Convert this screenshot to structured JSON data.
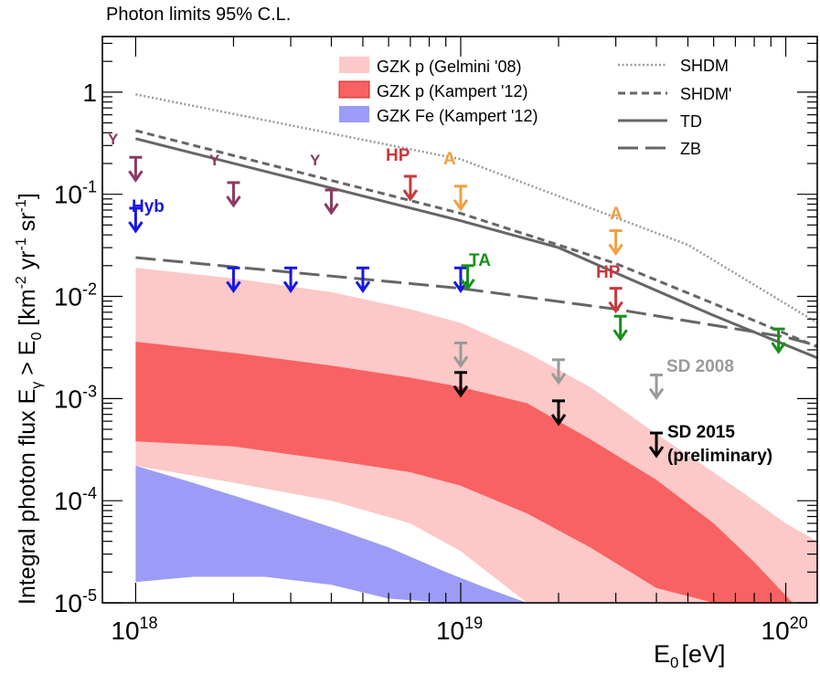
{
  "chart_data": {
    "type": "line",
    "title": "Photon limits 95% C.L.",
    "xlabel": "E",
    "xlabel_sub": "0",
    "xlabel_unit": "[eV]",
    "ylabel": {
      "main": "Integral photon flux E",
      "sub_gamma": "γ",
      "gt": " > E",
      "sub_zero": "0",
      "unit_open": " [km",
      "sup1": "-2",
      "yr": " yr",
      "sup2": "-1",
      "sr": " sr",
      "sup3": "-1",
      "unit_close": "]"
    },
    "x_scale": "log",
    "y_scale": "log",
    "xlim": [
      7.9e+17,
      1.25e+20
    ],
    "ylim": [
      1e-05,
      3.5
    ],
    "x_ticks": [
      {
        "base": "10",
        "exp": "18",
        "value": 1e+18
      },
      {
        "base": "10",
        "exp": "19",
        "value": 1e+19
      },
      {
        "base": "10",
        "exp": "20",
        "value": 1e+20
      }
    ],
    "y_ticks": [
      {
        "base": "10",
        "exp": "-5",
        "value": 1e-05
      },
      {
        "base": "10",
        "exp": "-4",
        "value": 0.0001
      },
      {
        "base": "10",
        "exp": "-3",
        "value": 0.001
      },
      {
        "base": "10",
        "exp": "-2",
        "value": 0.01
      },
      {
        "base": "10",
        "exp": "-1",
        "value": 0.1
      },
      {
        "base": "1",
        "exp": "",
        "value": 1
      }
    ],
    "bands": [
      {
        "name": "GZK p (Gelmini '08)",
        "color": "#fcc8c8",
        "x": [
          1e+18,
          2e+18,
          4e+18,
          7e+18,
          1e+19,
          1.6e+19,
          2.5e+19,
          4e+19,
          6e+19,
          8e+19,
          1e+20,
          1.25e+20
        ],
        "upper": [
          0.019,
          0.015,
          0.011,
          0.0075,
          0.0055,
          0.0028,
          0.0013,
          0.00045,
          0.00019,
          0.0001,
          6e-05,
          4e-05
        ],
        "lower": [
          0.00022,
          0.00015,
          0.0001,
          6e-05,
          3.2e-05,
          1e-05,
          1e-05,
          1e-05,
          1e-05,
          1e-05,
          1e-05,
          1e-05
        ]
      },
      {
        "name": "GZK p (Kampert '12)",
        "color": "#f86262",
        "x": [
          1e+18,
          2e+18,
          4e+18,
          7e+18,
          1e+19,
          1.6e+19,
          2.5e+19,
          4e+19,
          6e+19,
          8e+19,
          1.05e+20
        ],
        "upper": [
          0.0036,
          0.0028,
          0.0021,
          0.0016,
          0.0013,
          0.0009,
          0.0004,
          0.00016,
          6e-05,
          2.5e-05,
          1e-05
        ],
        "lower": [
          0.00038,
          0.00034,
          0.00025,
          0.00019,
          0.00014,
          7.5e-05,
          3.5e-05,
          1.4e-05,
          1e-05,
          1e-05,
          1e-05
        ]
      },
      {
        "name": "GZK Fe (Kampert '12)",
        "color": "#9c9cf8",
        "x": [
          1e+18,
          1.5e+18,
          2.5e+18,
          4e+18,
          6e+18,
          9e+18,
          1.2e+19,
          1.6e+19
        ],
        "upper": [
          0.00022,
          0.00015,
          9e-05,
          5.5e-05,
          3.5e-05,
          2e-05,
          1.4e-05,
          1e-05
        ],
        "lower": [
          1.6e-05,
          1.8e-05,
          1.8e-05,
          1.5e-05,
          1.1e-05,
          1e-05,
          1e-05,
          1e-05
        ]
      }
    ],
    "models": [
      {
        "name": "SHDM",
        "style": "dotted",
        "x": [
          1e+18,
          1e+19,
          5e+19,
          1.25e+20
        ],
        "y": [
          0.95,
          0.22,
          0.032,
          0.0055
        ]
      },
      {
        "name": "SHDM'",
        "style": "short-dash",
        "x": [
          1e+18,
          1e+19,
          3e+19,
          6e+19,
          1.25e+20
        ],
        "y": [
          0.42,
          0.065,
          0.021,
          0.0085,
          0.0032
        ]
      },
      {
        "name": "TD",
        "style": "solid",
        "x": [
          1e+18,
          1e+19,
          2e+19,
          3e+19,
          6e+19,
          1.25e+20
        ],
        "y": [
          0.35,
          0.055,
          0.03,
          0.017,
          0.0065,
          0.0025
        ]
      },
      {
        "name": "ZB",
        "style": "long-dash",
        "x": [
          1e+18,
          1e+19,
          3e+19,
          1e+20,
          1.25e+20
        ],
        "y": [
          0.024,
          0.012,
          0.0075,
          0.004,
          0.0033
        ]
      }
    ],
    "limits": [
      {
        "group": "Y",
        "color": "#8b3a62",
        "points": [
          [
            1e+18,
            0.23
          ],
          [
            2e+18,
            0.13
          ],
          [
            4e+18,
            0.11
          ]
        ]
      },
      {
        "group": "HP",
        "color": "#c8383c",
        "points": [
          [
            7e+18,
            0.15
          ],
          [
            3e+19,
            0.012
          ]
        ]
      },
      {
        "group": "A",
        "color": "#f0a040",
        "points": [
          [
            1e+19,
            0.12
          ],
          [
            3e+19,
            0.044
          ]
        ]
      },
      {
        "group": "Hyb",
        "color": "#1818e0",
        "points": [
          [
            1e+18,
            0.073
          ],
          [
            2e+18,
            0.019
          ],
          [
            3e+18,
            0.019
          ],
          [
            5e+18,
            0.019
          ],
          [
            1e+19,
            0.019
          ]
        ]
      },
      {
        "group": "TA",
        "color": "#18901c",
        "points": [
          [
            1.05e+19,
            0.02
          ],
          [
            3.1e+19,
            0.0064
          ],
          [
            9.5e+19,
            0.0048
          ]
        ]
      },
      {
        "group": "SD 2008",
        "color": "#9a9a9a",
        "points": [
          [
            1e+19,
            0.0035
          ],
          [
            2e+19,
            0.0024
          ],
          [
            4e+19,
            0.0017
          ]
        ]
      },
      {
        "group": "SD 2015",
        "color": "#000000",
        "points": [
          [
            1e+19,
            0.0018
          ],
          [
            2e+19,
            0.00095
          ],
          [
            4e+19,
            0.00046
          ]
        ]
      }
    ],
    "limit_labels": {
      "Y": "Y",
      "HP": "HP",
      "A": "A",
      "Hyb": "Hyb",
      "TA": "TA",
      "SD2008": "SD 2008",
      "SD2015_line1": "SD 2015",
      "SD2015_line2": "(preliminary)"
    },
    "legend": {
      "bands": [
        "GZK p (Gelmini '08)",
        "GZK p (Kampert '12)",
        "GZK Fe (Kampert '12)"
      ],
      "lines": [
        "SHDM",
        "SHDM'",
        "TD",
        "ZB"
      ],
      "placement": "top"
    }
  }
}
